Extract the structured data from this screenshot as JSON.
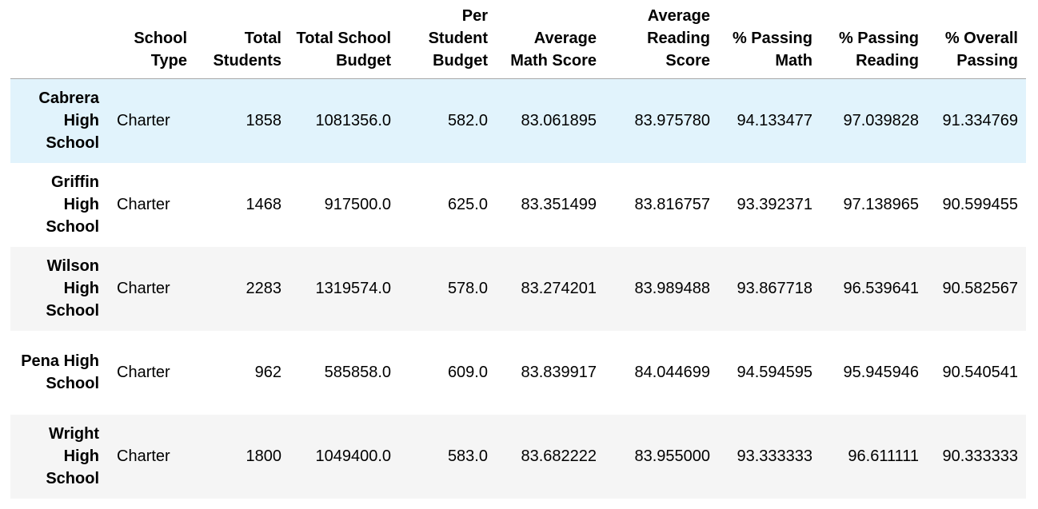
{
  "table": {
    "columns": [
      "",
      "School Type",
      "Total Students",
      "Total School Budget",
      "Per Student Budget",
      "Average Math Score",
      "Average Reading Score",
      "% Passing Math",
      "% Passing Reading",
      "% Overall Passing"
    ],
    "rows": [
      {
        "school": "Cabrera High School",
        "type": "Charter",
        "total_students": "1858",
        "total_budget": "1081356.0",
        "per_student": "582.0",
        "avg_math": "83.061895",
        "avg_reading": "83.975780",
        "pct_math": "94.133477",
        "pct_reading": "97.039828",
        "pct_overall": "91.334769"
      },
      {
        "school": "Griffin High School",
        "type": "Charter",
        "total_students": "1468",
        "total_budget": "917500.0",
        "per_student": "625.0",
        "avg_math": "83.351499",
        "avg_reading": "83.816757",
        "pct_math": "93.392371",
        "pct_reading": "97.138965",
        "pct_overall": "90.599455"
      },
      {
        "school": "Wilson High School",
        "type": "Charter",
        "total_students": "2283",
        "total_budget": "1319574.0",
        "per_student": "578.0",
        "avg_math": "83.274201",
        "avg_reading": "83.989488",
        "pct_math": "93.867718",
        "pct_reading": "96.539641",
        "pct_overall": "90.582567"
      },
      {
        "school": "Pena High School",
        "type": "Charter",
        "total_students": "962",
        "total_budget": "585858.0",
        "per_student": "609.0",
        "avg_math": "83.839917",
        "avg_reading": "84.044699",
        "pct_math": "94.594595",
        "pct_reading": "95.945946",
        "pct_overall": "90.540541"
      },
      {
        "school": "Wright High School",
        "type": "Charter",
        "total_students": "1800",
        "total_budget": "1049400.0",
        "per_student": "583.0",
        "avg_math": "83.682222",
        "avg_reading": "83.955000",
        "pct_math": "93.333333",
        "pct_reading": "96.611111",
        "pct_overall": "90.333333"
      }
    ]
  },
  "colors": {
    "row_hover": "#e1f3fc",
    "row_striped": "#f5f5f5",
    "header_border": "#a8a8a8"
  }
}
